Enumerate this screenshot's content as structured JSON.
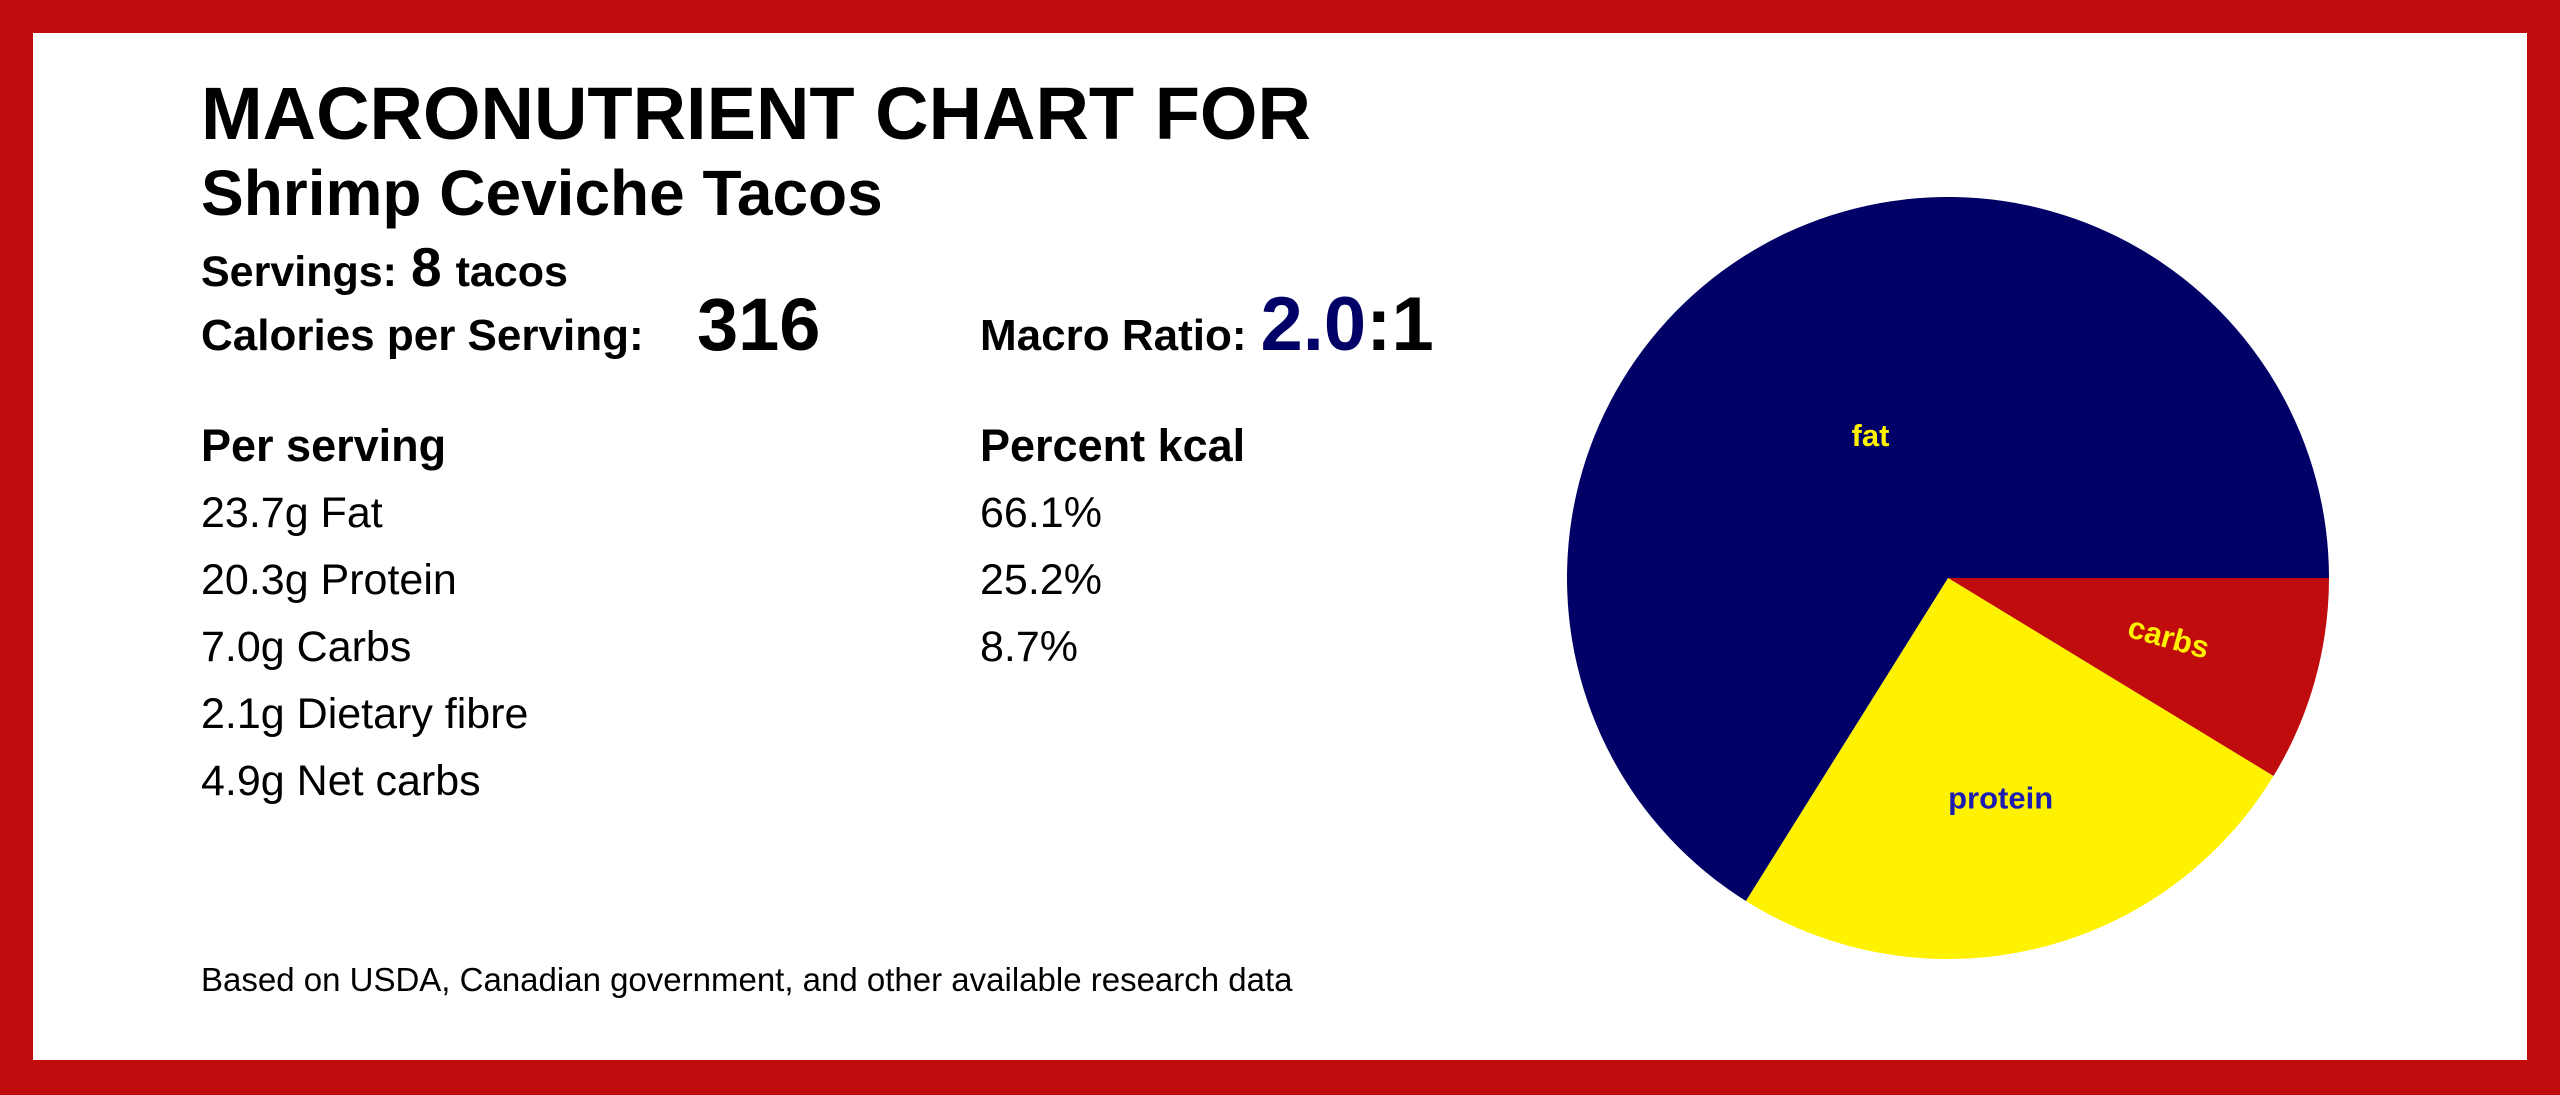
{
  "header": {
    "title": "MACRONUTRIENT CHART FOR",
    "recipe": "Shrimp Ceviche Tacos",
    "servings_label": "Servings:",
    "servings_count": "8",
    "servings_unit": "tacos",
    "calories_label": "Calories per Serving:",
    "calories": "316",
    "ratio_label": "Macro Ratio:",
    "ratio_value": "2.0",
    "ratio_suffix": ":1"
  },
  "table": {
    "per_serving_header": "Per serving",
    "percent_header": "Percent kcal",
    "per_serving": [
      "23.7g Fat",
      "20.3g Protein",
      "7.0g Carbs",
      "2.1g Dietary fibre",
      "4.9g Net carbs"
    ]
  },
  "footer": "Based on USDA, Canadian government, and other available research data",
  "chart_data": {
    "type": "pie",
    "categories": [
      "fat",
      "protein",
      "carbs"
    ],
    "values": [
      66.1,
      25.2,
      8.7
    ],
    "value_labels": [
      "66.1%",
      "25.2%",
      "8.7%"
    ],
    "colors": [
      "#000066",
      "#fff200",
      "#c00c0c"
    ],
    "label_colors": [
      "#fff200",
      "#1c1cb0",
      "#fff200"
    ]
  }
}
